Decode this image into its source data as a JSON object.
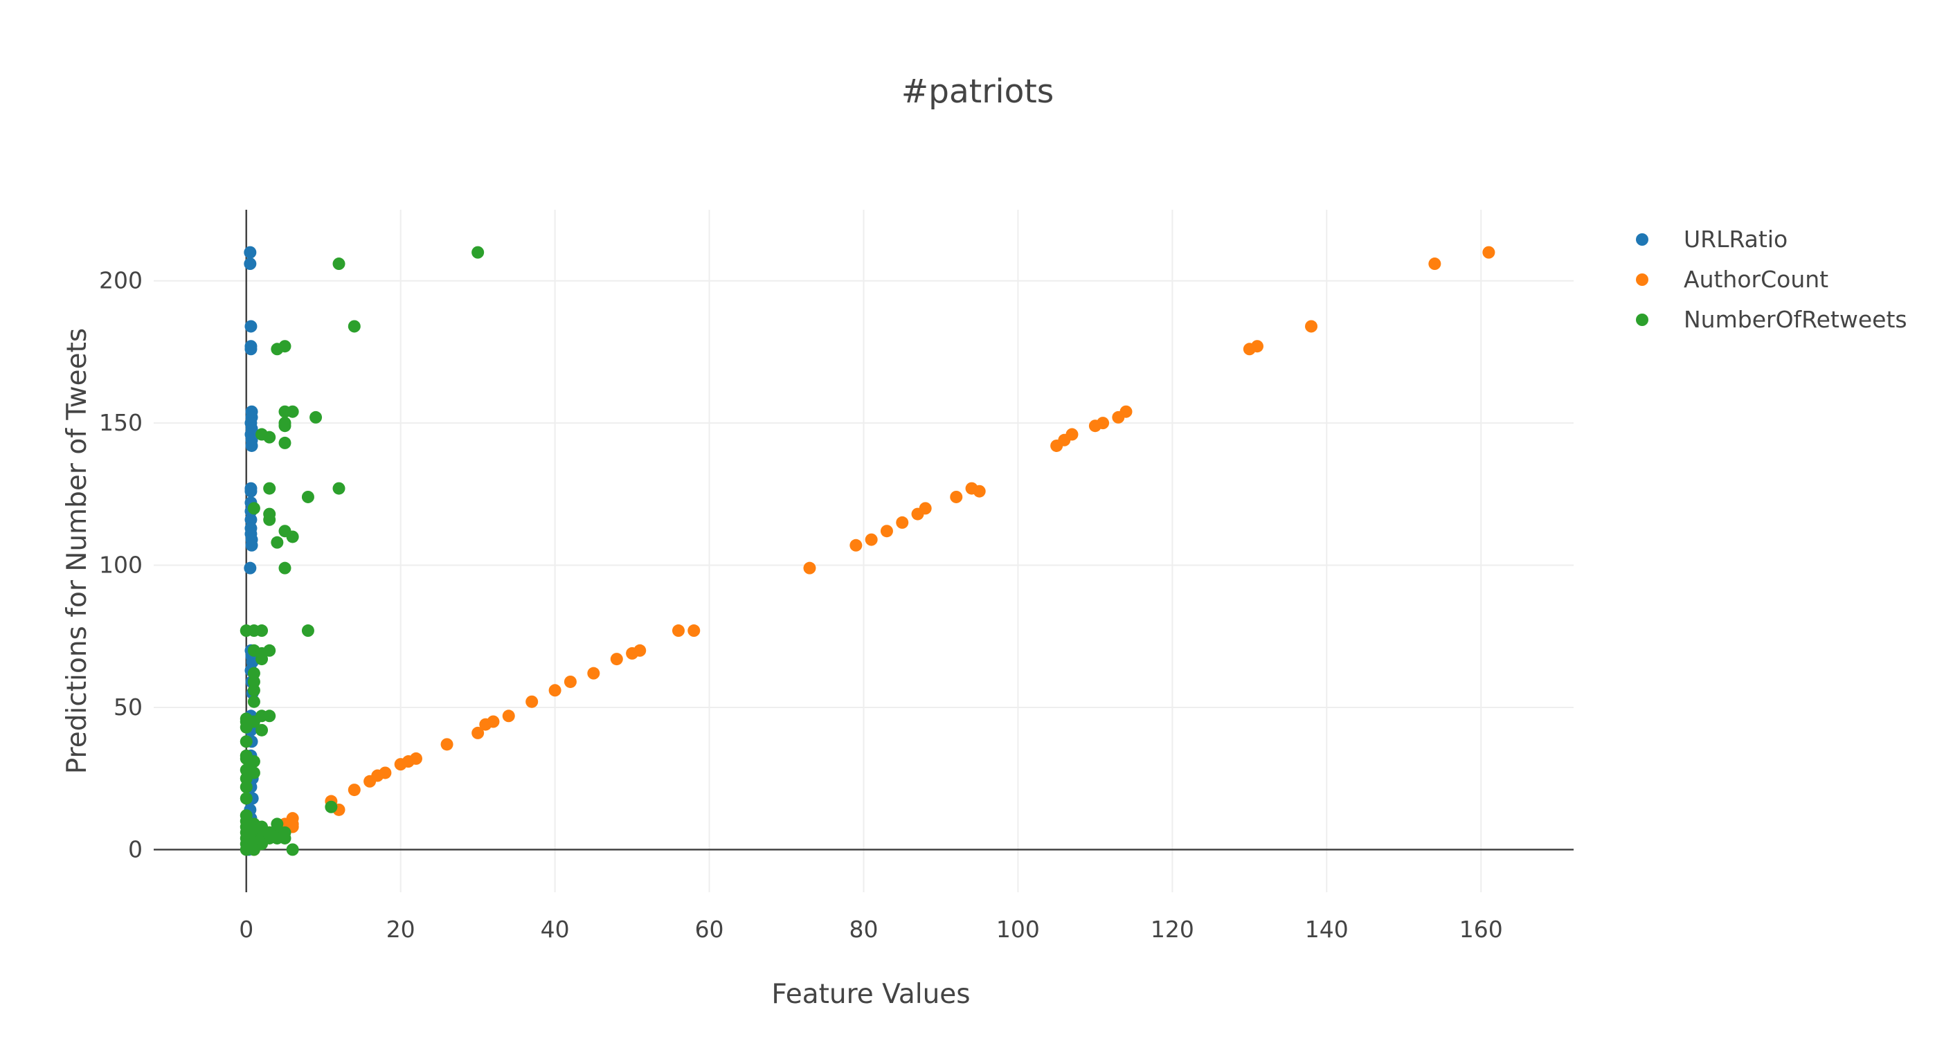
{
  "chart_data": {
    "type": "scatter",
    "title": "#patriots",
    "xlabel": "Feature Values",
    "ylabel": "Predictions for Number of Tweets",
    "xlim": [
      -12,
      172
    ],
    "ylim": [
      -15,
      225
    ],
    "xticks": [
      0,
      20,
      40,
      60,
      80,
      100,
      120,
      140,
      160
    ],
    "yticks": [
      0,
      50,
      100,
      150,
      200
    ],
    "grid": true,
    "legend_position": "top-right",
    "series": [
      {
        "name": "URLRatio",
        "color": "#1f77b4",
        "points": [
          [
            0.5,
            210
          ],
          [
            0.5,
            206
          ],
          [
            0.6,
            184
          ],
          [
            0.6,
            177
          ],
          [
            0.6,
            176
          ],
          [
            0.7,
            154
          ],
          [
            0.7,
            152
          ],
          [
            0.6,
            150
          ],
          [
            0.7,
            148
          ],
          [
            0.6,
            146
          ],
          [
            0.7,
            144
          ],
          [
            0.7,
            142
          ],
          [
            0.6,
            127
          ],
          [
            0.6,
            126
          ],
          [
            0.6,
            122
          ],
          [
            0.6,
            119
          ],
          [
            0.6,
            116
          ],
          [
            0.6,
            113
          ],
          [
            0.6,
            111
          ],
          [
            0.7,
            109
          ],
          [
            0.7,
            107
          ],
          [
            0.5,
            99
          ],
          [
            0.6,
            70
          ],
          [
            0.7,
            68
          ],
          [
            0.8,
            66
          ],
          [
            0.6,
            63
          ],
          [
            0.7,
            59
          ],
          [
            0.8,
            55
          ],
          [
            0.6,
            47
          ],
          [
            0.7,
            45
          ],
          [
            0.6,
            42
          ],
          [
            0.7,
            38
          ],
          [
            0.6,
            33
          ],
          [
            0.7,
            31
          ],
          [
            0.6,
            27
          ],
          [
            0.8,
            25
          ],
          [
            0.6,
            22
          ],
          [
            0.8,
            18
          ],
          [
            0.5,
            14
          ],
          [
            0.6,
            11
          ],
          [
            0.9,
            9
          ],
          [
            0.5,
            7
          ],
          [
            0.7,
            5
          ],
          [
            0.6,
            3
          ],
          [
            0.8,
            1
          ],
          [
            0.3,
            0
          ]
        ]
      },
      {
        "name": "AuthorCount",
        "color": "#ff7f0e",
        "points": [
          [
            161,
            210
          ],
          [
            154,
            206
          ],
          [
            138,
            184
          ],
          [
            131,
            177
          ],
          [
            130,
            176
          ],
          [
            114,
            154
          ],
          [
            113,
            152
          ],
          [
            111,
            150
          ],
          [
            110,
            149
          ],
          [
            107,
            146
          ],
          [
            106,
            144
          ],
          [
            105,
            142
          ],
          [
            94,
            127
          ],
          [
            95,
            126
          ],
          [
            92,
            124
          ],
          [
            88,
            120
          ],
          [
            87,
            118
          ],
          [
            85,
            115
          ],
          [
            83,
            112
          ],
          [
            81,
            109
          ],
          [
            79,
            107
          ],
          [
            73,
            99
          ],
          [
            58,
            77
          ],
          [
            56,
            77
          ],
          [
            51,
            70
          ],
          [
            50,
            69
          ],
          [
            48,
            67
          ],
          [
            45,
            62
          ],
          [
            42,
            59
          ],
          [
            40,
            56
          ],
          [
            37,
            52
          ],
          [
            34,
            47
          ],
          [
            32,
            45
          ],
          [
            31,
            44
          ],
          [
            30,
            41
          ],
          [
            26,
            37
          ],
          [
            22,
            32
          ],
          [
            21,
            31
          ],
          [
            20,
            30
          ],
          [
            18,
            27
          ],
          [
            17,
            26
          ],
          [
            16,
            24
          ],
          [
            14,
            21
          ],
          [
            12,
            14
          ],
          [
            11,
            17
          ],
          [
            6,
            11
          ],
          [
            6,
            9
          ],
          [
            6,
            8
          ],
          [
            5,
            9
          ],
          [
            4,
            7
          ],
          [
            3,
            6
          ],
          [
            2,
            5
          ],
          [
            1,
            3
          ],
          [
            1,
            0
          ]
        ]
      },
      {
        "name": "NumberOfRetweets",
        "color": "#2ca02c",
        "points": [
          [
            30,
            210
          ],
          [
            12,
            206
          ],
          [
            14,
            184
          ],
          [
            5,
            177
          ],
          [
            4,
            176
          ],
          [
            5,
            154
          ],
          [
            6,
            154
          ],
          [
            9,
            152
          ],
          [
            5,
            150
          ],
          [
            5,
            149
          ],
          [
            2,
            146
          ],
          [
            3,
            145
          ],
          [
            5,
            143
          ],
          [
            3,
            127
          ],
          [
            12,
            127
          ],
          [
            8,
            124
          ],
          [
            5,
            112
          ],
          [
            3,
            118
          ],
          [
            1,
            120
          ],
          [
            3,
            116
          ],
          [
            6,
            110
          ],
          [
            4,
            108
          ],
          [
            5,
            99
          ],
          [
            0,
            77
          ],
          [
            1,
            77
          ],
          [
            2,
            77
          ],
          [
            8,
            77
          ],
          [
            1,
            70
          ],
          [
            2,
            69
          ],
          [
            3,
            70
          ],
          [
            2,
            67
          ],
          [
            1,
            62
          ],
          [
            1,
            59
          ],
          [
            1,
            56
          ],
          [
            1,
            52
          ],
          [
            2,
            47
          ],
          [
            3,
            47
          ],
          [
            0,
            46
          ],
          [
            0,
            45
          ],
          [
            1,
            45
          ],
          [
            0,
            43
          ],
          [
            2,
            42
          ],
          [
            0,
            38
          ],
          [
            0,
            33
          ],
          [
            0,
            32
          ],
          [
            1,
            31
          ],
          [
            0,
            28
          ],
          [
            1,
            27
          ],
          [
            0,
            25
          ],
          [
            0,
            22
          ],
          [
            0,
            18
          ],
          [
            11,
            15
          ],
          [
            0,
            12
          ],
          [
            0,
            10
          ],
          [
            1,
            9
          ],
          [
            0,
            8
          ],
          [
            2,
            8
          ],
          [
            4,
            9
          ],
          [
            4,
            7
          ],
          [
            0,
            6
          ],
          [
            1,
            6
          ],
          [
            2,
            6
          ],
          [
            3,
            6
          ],
          [
            5,
            6
          ],
          [
            0,
            4
          ],
          [
            2,
            4
          ],
          [
            3,
            4
          ],
          [
            4,
            4
          ],
          [
            5,
            4
          ],
          [
            0,
            2
          ],
          [
            1,
            2
          ],
          [
            2,
            2
          ],
          [
            0,
            0
          ],
          [
            1,
            0
          ],
          [
            6,
            0
          ]
        ]
      }
    ]
  }
}
